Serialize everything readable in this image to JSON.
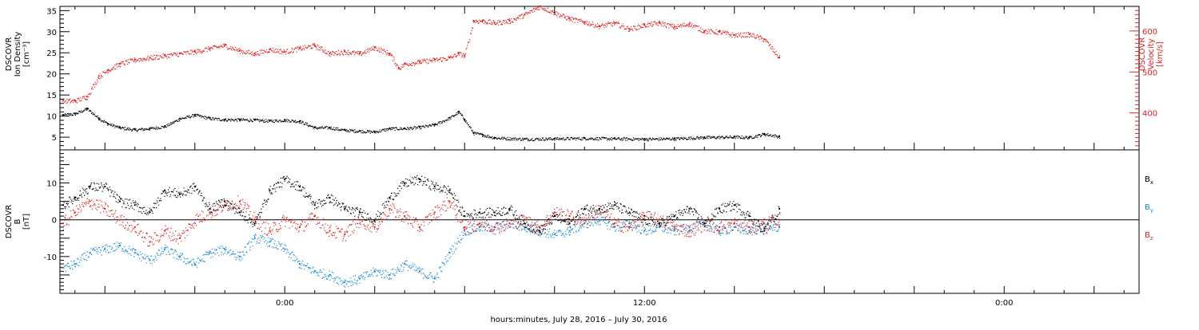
{
  "colors": {
    "black": "#000000",
    "red": "#e02020",
    "blue": "#1a8ad4"
  },
  "chart_data": [
    {
      "type": "scatter",
      "panel": "top",
      "ylabel_lines": [
        "DSCOVR",
        "Ion Density",
        "[cm⁻³]"
      ],
      "ylabel_right_lines": [
        "DSCOVR",
        "Velocity",
        "[km/s]"
      ],
      "ylim": [
        2,
        36
      ],
      "y2lim": [
        310,
        660
      ],
      "yticks": [
        "5",
        "10",
        "15",
        "20",
        "25",
        "30",
        "35"
      ],
      "y2ticks": [
        "400",
        "500",
        "600"
      ],
      "x_hours": [
        -7.5,
        28.5
      ],
      "data_end_hour": 16.5,
      "series": [
        {
          "role": "density",
          "color": "black",
          "x": [
            -7.4,
            -7.0,
            -6.6,
            -6.2,
            -5.9,
            -5.5,
            -5.0,
            -4.5,
            -4.0,
            -3.5,
            -3.0,
            -2.5,
            -2.0,
            -1.5,
            -1.0,
            -0.5,
            0.0,
            0.5,
            1.0,
            1.5,
            2.0,
            2.5,
            3.0,
            3.5,
            4.0,
            4.5,
            5.0,
            5.5,
            5.8,
            6.0,
            6.3,
            6.6,
            7.0,
            8.0,
            9.0,
            10.0,
            11.0,
            12.0,
            13.0,
            14.0,
            15.0,
            15.5,
            16.0,
            16.5
          ],
          "y": [
            10.3,
            10.6,
            11.8,
            9.5,
            8.2,
            7.3,
            6.8,
            7.1,
            7.6,
            9.4,
            10.3,
            9.5,
            9.2,
            9.2,
            9.1,
            8.9,
            9.1,
            8.8,
            7.3,
            7.3,
            6.7,
            6.5,
            6.3,
            7.1,
            7.1,
            7.4,
            8.0,
            9.6,
            11.0,
            9.2,
            6.0,
            5.6,
            4.9,
            4.6,
            4.7,
            4.8,
            4.7,
            4.6,
            4.7,
            5.0,
            5.1,
            5.0,
            5.8,
            5.2
          ]
        },
        {
          "role": "velocity",
          "color": "red",
          "x": [
            -7.4,
            -7.0,
            -6.6,
            -6.2,
            -5.9,
            -5.5,
            -5.0,
            -4.5,
            -4.0,
            -3.5,
            -3.0,
            -2.5,
            -2.0,
            -1.5,
            -1.0,
            -0.5,
            0.0,
            0.5,
            1.0,
            1.5,
            2.0,
            2.5,
            3.0,
            3.5,
            3.8,
            4.0,
            4.5,
            5.0,
            5.5,
            5.8,
            6.0,
            6.3,
            6.6,
            7.0,
            7.5,
            8.0,
            8.5,
            9.0,
            9.5,
            10.0,
            10.5,
            11.0,
            11.5,
            12.0,
            12.5,
            13.0,
            13.5,
            14.0,
            14.5,
            15.0,
            15.5,
            16.0,
            16.5
          ],
          "y": [
            430,
            430,
            440,
            490,
            505,
            520,
            530,
            535,
            540,
            545,
            550,
            558,
            565,
            552,
            545,
            555,
            550,
            558,
            565,
            545,
            550,
            545,
            560,
            545,
            510,
            520,
            525,
            530,
            535,
            545,
            540,
            625,
            625,
            620,
            625,
            640,
            660,
            645,
            630,
            622,
            612,
            620,
            605,
            615,
            620,
            610,
            618,
            600,
            598,
            590,
            592,
            580,
            535
          ]
        }
      ]
    },
    {
      "type": "scatter",
      "panel": "bottom",
      "ylabel_lines": [
        "DSCOVR",
        "B",
        "[nT]"
      ],
      "ylim": [
        -20,
        19
      ],
      "yticks": [
        "-10",
        "0",
        "10"
      ],
      "xtick_labels": [
        "0:00",
        "12:00",
        "0:00"
      ],
      "xtick_hours": [
        0,
        12,
        24
      ],
      "xlabel": "hours:minutes, July 28, 2016 – July 30, 2016",
      "legend": [
        {
          "label": "B",
          "sub": "x",
          "color": "black"
        },
        {
          "label": "B",
          "sub": "y",
          "color": "blue"
        },
        {
          "label": "B",
          "sub": "z",
          "color": "red"
        }
      ],
      "series": [
        {
          "role": "Bx",
          "color": "black",
          "x": [
            -7.4,
            -7.0,
            -6.5,
            -6.0,
            -5.5,
            -5.0,
            -4.5,
            -4.0,
            -3.5,
            -3.0,
            -2.5,
            -2.0,
            -1.5,
            -1.0,
            -0.5,
            0.0,
            0.5,
            1.0,
            1.5,
            2.0,
            2.5,
            3.0,
            3.5,
            4.0,
            4.5,
            5.0,
            5.5,
            6.0,
            6.5,
            7.0,
            7.5,
            8.0,
            8.5,
            9.0,
            9.5,
            10.0,
            10.5,
            11.0,
            11.5,
            12.0,
            12.5,
            13.0,
            13.5,
            14.0,
            14.5,
            15.0,
            15.5,
            16.0,
            16.5
          ],
          "y": [
            4,
            6,
            9,
            9,
            5,
            4,
            2,
            8,
            7,
            9,
            3,
            5,
            2,
            -1,
            8,
            11,
            9,
            4,
            6,
            3,
            2,
            0,
            6,
            10,
            11,
            9,
            8,
            1,
            2,
            2,
            3,
            -1,
            -3,
            1,
            -1,
            3,
            3,
            4,
            2,
            0,
            -1,
            1,
            3,
            -1,
            3,
            4,
            1,
            -3,
            3
          ]
        },
        {
          "role": "By",
          "color": "blue",
          "x": [
            -7.4,
            -7.0,
            -6.5,
            -6.0,
            -5.5,
            -5.0,
            -4.5,
            -4.0,
            -3.5,
            -3.0,
            -2.5,
            -2.0,
            -1.5,
            -1.0,
            -0.5,
            0.0,
            0.5,
            1.0,
            1.5,
            2.0,
            2.5,
            3.0,
            3.5,
            4.0,
            4.5,
            5.0,
            5.5,
            6.0,
            6.5,
            7.0,
            7.5,
            8.0,
            8.5,
            9.0,
            9.5,
            10.0,
            10.5,
            11.0,
            11.5,
            12.0,
            12.5,
            13.0,
            13.5,
            14.0,
            14.5,
            15.0,
            15.5,
            16.0,
            16.5
          ],
          "y": [
            -13,
            -12,
            -9,
            -8,
            -7,
            -9,
            -11,
            -8,
            -10,
            -12,
            -9,
            -8,
            -10,
            -5,
            -6,
            -8,
            -12,
            -14,
            -15,
            -17,
            -16,
            -14,
            -15,
            -12,
            -14,
            -16,
            -9,
            -3,
            -2,
            -2,
            -1,
            -2,
            -3,
            -4,
            -3,
            -1,
            0,
            -2,
            -1,
            -3,
            -2,
            -3,
            -2,
            -1,
            -3,
            -2,
            -3,
            -2,
            -2
          ]
        },
        {
          "role": "Bz",
          "color": "red",
          "x": [
            -7.4,
            -7.0,
            -6.5,
            -6.0,
            -5.5,
            -5.0,
            -4.5,
            -4.0,
            -3.5,
            -3.0,
            -2.5,
            -2.0,
            -1.5,
            -1.0,
            -0.5,
            0.0,
            0.5,
            1.0,
            1.5,
            2.0,
            2.5,
            3.0,
            3.5,
            4.0,
            4.5,
            5.0,
            5.5,
            6.0,
            6.5,
            7.0,
            7.5,
            8.0,
            8.5,
            9.0,
            9.5,
            10.0,
            10.5,
            11.0,
            11.5,
            12.0,
            12.5,
            13.0,
            13.5,
            14.0,
            14.5,
            15.0,
            15.5,
            16.0,
            16.5
          ],
          "y": [
            -1,
            2,
            5,
            3,
            0,
            -2,
            -6,
            -3,
            -5,
            0,
            2,
            4,
            5,
            0,
            -3,
            0,
            -2,
            1,
            -3,
            -4,
            0,
            -2,
            3,
            1,
            -2,
            2,
            5,
            -2,
            -1,
            -2,
            -1,
            0,
            -2,
            2,
            1,
            0,
            3,
            -1,
            -2,
            1,
            0,
            -2,
            -3,
            -1,
            -2,
            -1,
            -2,
            -1,
            0
          ]
        }
      ]
    }
  ]
}
